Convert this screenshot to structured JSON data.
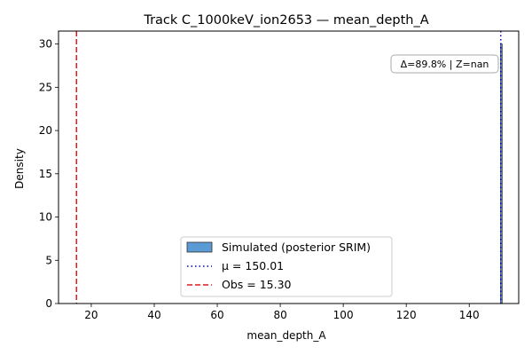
{
  "chart_data": {
    "type": "bar",
    "title": "Track C_1000keV_ion2653 — mean_depth_A",
    "xlabel": "mean_depth_A",
    "ylabel": "Density",
    "xlim": [
      9.6,
      155.7
    ],
    "ylim": [
      0,
      31.5
    ],
    "xticks": [
      20,
      40,
      60,
      80,
      100,
      120,
      140
    ],
    "yticks": [
      0,
      5,
      10,
      15,
      20,
      25,
      30
    ],
    "grid": false,
    "legend_position": "lower-center",
    "series": [
      {
        "name": "Simulated (posterior SRIM)",
        "kind": "histogram",
        "bins": [
          {
            "x0": 149.98,
            "x1": 150.05,
            "density": 30
          }
        ],
        "color": "#5b9bd5"
      }
    ],
    "reference_lines": [
      {
        "name": "μ = 150.01",
        "x": 150.01,
        "style": "dotted",
        "color": "#0000cc"
      },
      {
        "name": "Obs = 15.30",
        "x": 15.3,
        "style": "dashed",
        "color": "#e31a1c"
      }
    ],
    "annotation": "Δ=89.8% | Z=nan"
  }
}
